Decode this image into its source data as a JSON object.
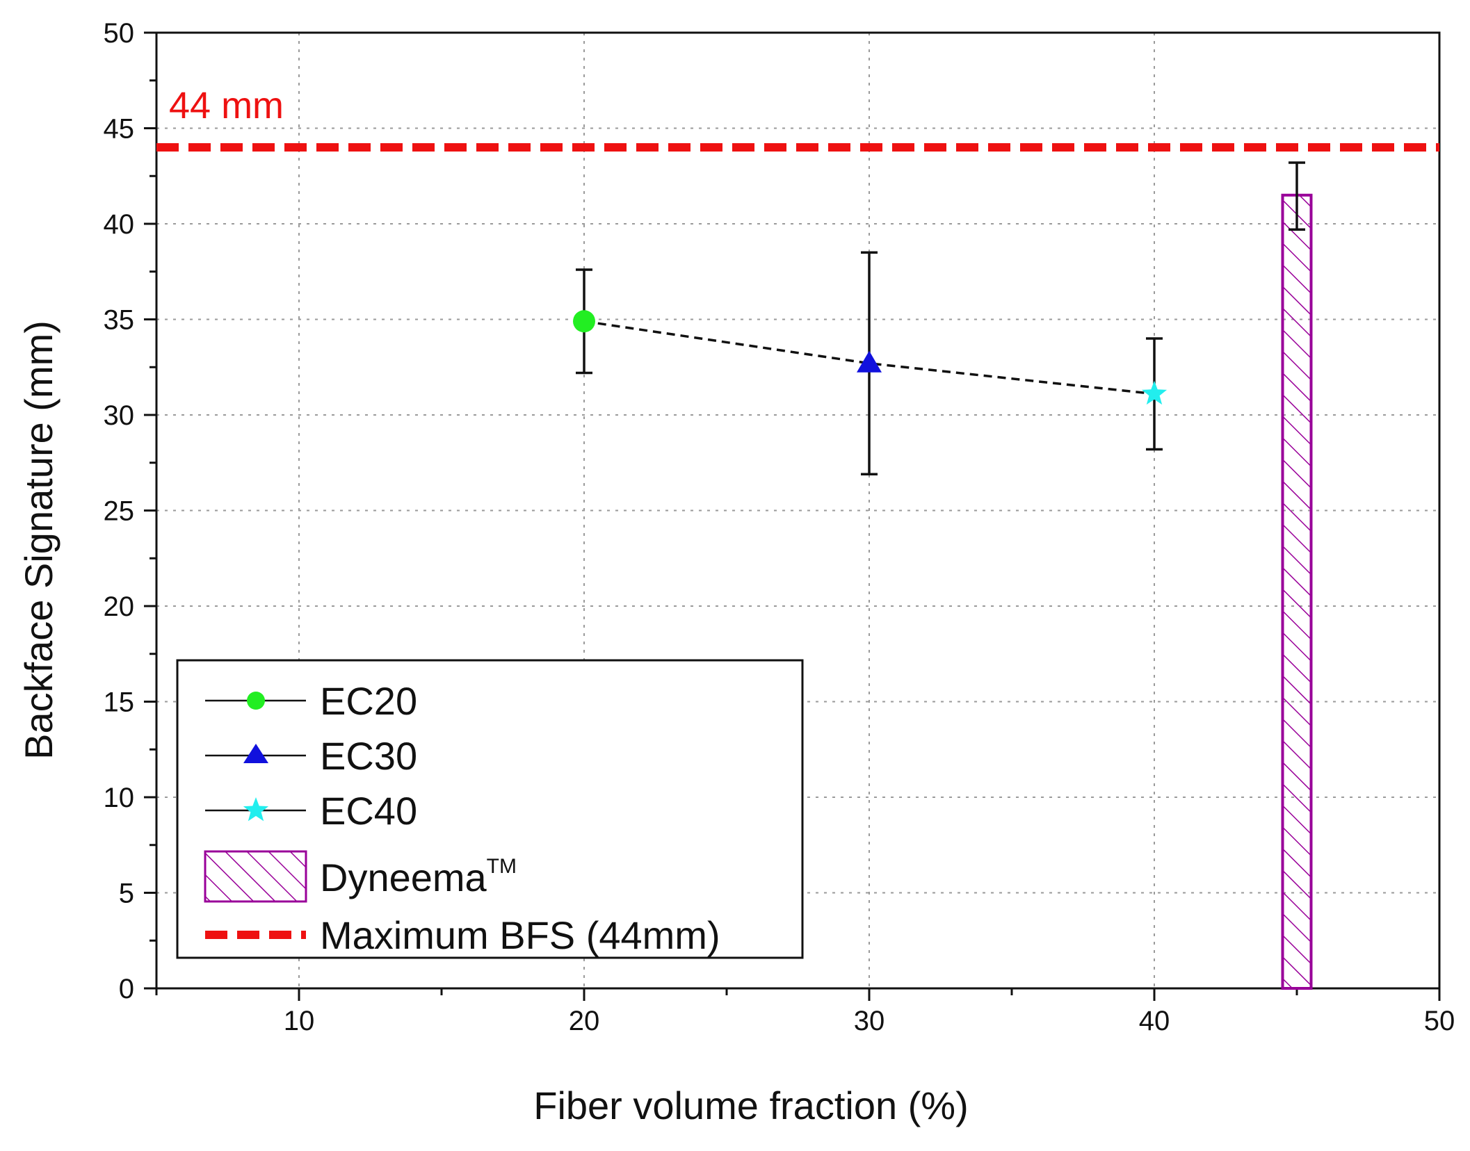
{
  "chart_data": {
    "type": "scatter",
    "xlabel": "Fiber volume fraction (%)",
    "ylabel": "Backface Signature (mm)",
    "xlim": [
      5,
      50
    ],
    "ylim": [
      0,
      50
    ],
    "xticks": [
      10,
      20,
      30,
      40,
      50
    ],
    "yticks": [
      0,
      5,
      10,
      15,
      20,
      25,
      30,
      35,
      40,
      45,
      50
    ],
    "grid": true,
    "series": [
      {
        "name": "EC20",
        "x": 20,
        "y": 34.9,
        "err_low": 32.2,
        "err_high": 37.6,
        "marker": "circle",
        "color": "#22ee22"
      },
      {
        "name": "EC30",
        "x": 30,
        "y": 32.7,
        "err_low": 26.9,
        "err_high": 38.5,
        "marker": "triangle",
        "color": "#1111dd"
      },
      {
        "name": "EC40",
        "x": 40,
        "y": 31.1,
        "err_low": 28.2,
        "err_high": 34.0,
        "marker": "star",
        "color": "#22eeee"
      }
    ],
    "trend_line": {
      "style": "dashed",
      "color": "#111111",
      "x": [
        20,
        30,
        40
      ],
      "y": [
        34.9,
        32.7,
        31.1
      ]
    },
    "bar": {
      "name": "Dyneema",
      "name_sup": "TM",
      "x": 45,
      "width": 1,
      "value": 41.5,
      "err_low": 39.7,
      "err_high": 43.2,
      "color": "#990099",
      "pattern": "hatch"
    },
    "reference_line": {
      "name": "Maximum BFS (44mm)",
      "y": 44,
      "color": "#ee1111",
      "style": "dashed",
      "annotation": "44 mm"
    },
    "legend": {
      "placement": "bottom-left",
      "entries": [
        "EC20",
        "EC30",
        "EC40",
        "Dyneema",
        "Maximum BFS (44mm)"
      ]
    }
  }
}
